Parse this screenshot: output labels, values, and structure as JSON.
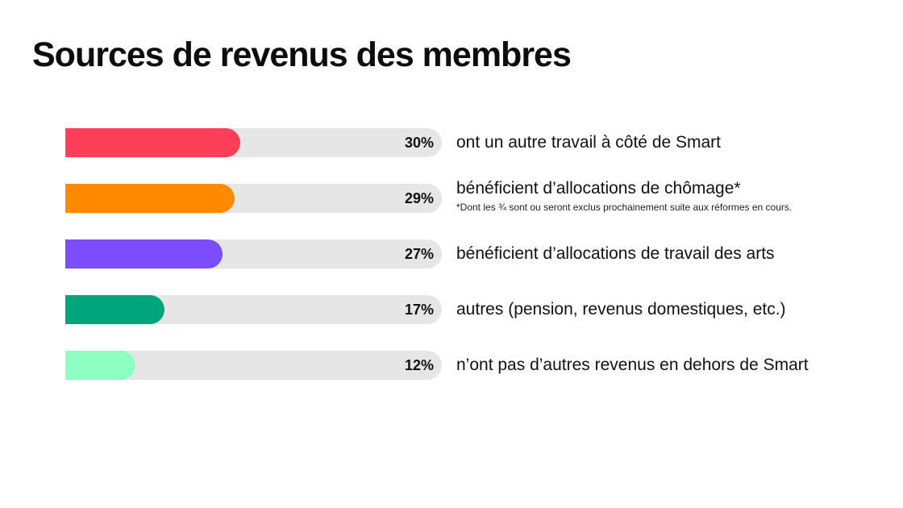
{
  "chart_data": {
    "type": "bar",
    "orientation": "horizontal",
    "title": "Sources de revenus des membres",
    "xlim": [
      0,
      100
    ],
    "unit": "%",
    "bars": [
      {
        "value": 30,
        "value_label": "30%",
        "category": "ont un autre travail à côté de Smart",
        "color": "#ff3e57"
      },
      {
        "value": 29,
        "value_label": "29%",
        "category": "bénéficient d’allocations de chômage*",
        "note": "*Dont les ¾ sont ou seront exclus prochainement suite aux réformes en cours.",
        "color": "#ff8a00"
      },
      {
        "value": 27,
        "value_label": "27%",
        "category": "bénéficient d’allocations de travail des arts",
        "color": "#7b4dff"
      },
      {
        "value": 17,
        "value_label": "17%",
        "category": "autres (pension, revenus domestiques, etc.)",
        "color": "#00a57c"
      },
      {
        "value": 12,
        "value_label": "12%",
        "category": "n’ont pas d’autres revenus en dehors de Smart",
        "color": "#8dffc0"
      }
    ],
    "track_color": "#e6e6e6"
  }
}
